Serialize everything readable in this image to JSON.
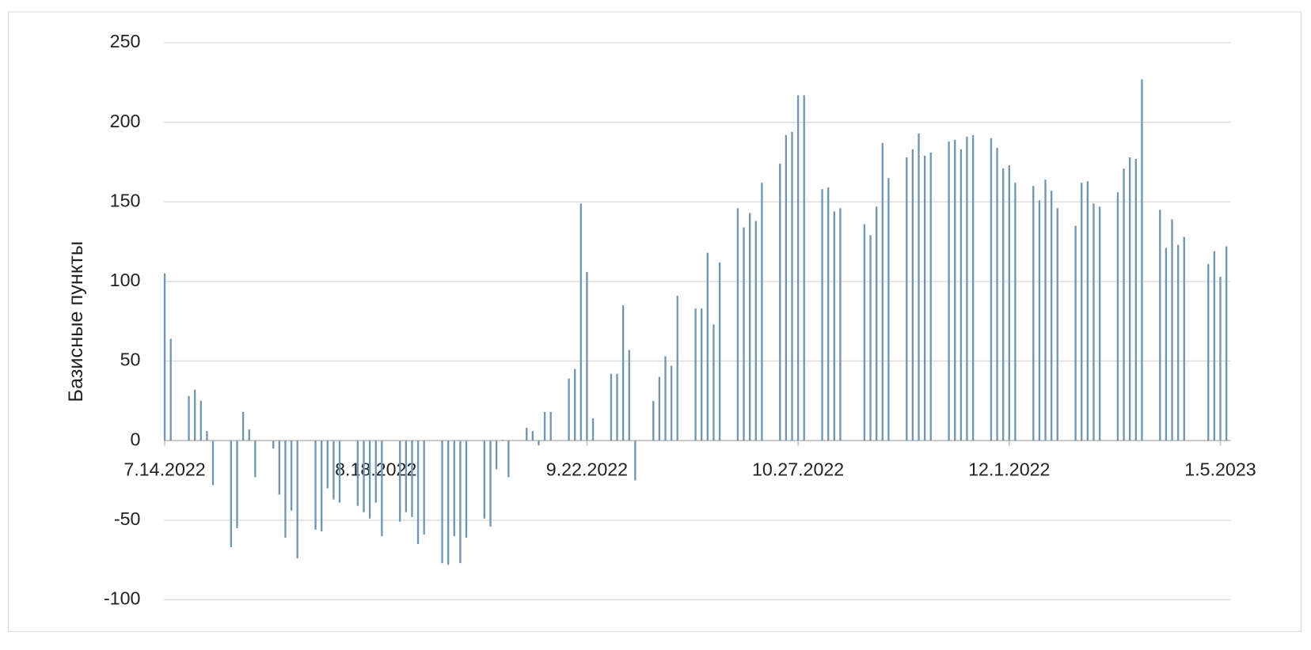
{
  "chart_data": {
    "type": "bar",
    "y_label": "Базисные пункты",
    "color": "#6f96b3",
    "grid": true,
    "ylim": [
      -100,
      250
    ],
    "yticks": [
      -100,
      -50,
      0,
      50,
      100,
      150,
      200,
      250
    ],
    "xlim": [
      "7.14.2022",
      "1.7.2023"
    ],
    "xticks": [
      "7.14.2022",
      "8.18.2022",
      "9.22.2022",
      "10.27.2022",
      "12.1.2022",
      "1.5.2023"
    ],
    "x": [
      "7.14.2022",
      "7.15.2022",
      "7.18.2022",
      "7.19.2022",
      "7.20.2022",
      "7.21.2022",
      "7.22.2022",
      "7.25.2022",
      "7.26.2022",
      "7.27.2022",
      "7.28.2022",
      "7.29.2022",
      "8.1.2022",
      "8.2.2022",
      "8.3.2022",
      "8.4.2022",
      "8.5.2022",
      "8.8.2022",
      "8.9.2022",
      "8.10.2022",
      "8.11.2022",
      "8.12.2022",
      "8.15.2022",
      "8.16.2022",
      "8.17.2022",
      "8.18.2022",
      "8.19.2022",
      "8.22.2022",
      "8.23.2022",
      "8.24.2022",
      "8.25.2022",
      "8.26.2022",
      "8.29.2022",
      "8.30.2022",
      "8.31.2022",
      "9.1.2022",
      "9.2.2022",
      "9.5.2022",
      "9.6.2022",
      "9.7.2022",
      "9.8.2022",
      "9.9.2022",
      "9.12.2022",
      "9.13.2022",
      "9.14.2022",
      "9.15.2022",
      "9.16.2022",
      "9.19.2022",
      "9.20.2022",
      "9.21.2022",
      "9.22.2022",
      "9.23.2022",
      "9.26.2022",
      "9.27.2022",
      "9.28.2022",
      "9.29.2022",
      "9.30.2022",
      "10.3.2022",
      "10.4.2022",
      "10.5.2022",
      "10.6.2022",
      "10.7.2022",
      "10.10.2022",
      "10.11.2022",
      "10.12.2022",
      "10.13.2022",
      "10.14.2022",
      "10.17.2022",
      "10.18.2022",
      "10.19.2022",
      "10.20.2022",
      "10.21.2022",
      "10.24.2022",
      "10.25.2022",
      "10.26.2022",
      "10.27.2022",
      "10.28.2022",
      "10.31.2022",
      "11.1.2022",
      "11.2.2022",
      "11.3.2022",
      "11.7.2022",
      "11.8.2022",
      "11.9.2022",
      "11.10.2022",
      "11.11.2022",
      "11.14.2022",
      "11.15.2022",
      "11.16.2022",
      "11.17.2022",
      "11.18.2022",
      "11.21.2022",
      "11.22.2022",
      "11.23.2022",
      "11.24.2022",
      "11.25.2022",
      "11.28.2022",
      "11.29.2022",
      "11.30.2022",
      "12.1.2022",
      "12.2.2022",
      "12.5.2022",
      "12.6.2022",
      "12.7.2022",
      "12.8.2022",
      "12.9.2022",
      "12.12.2022",
      "12.13.2022",
      "12.14.2022",
      "12.15.2022",
      "12.16.2022",
      "12.19.2022",
      "12.20.2022",
      "12.21.2022",
      "12.22.2022",
      "12.23.2022",
      "12.26.2022",
      "12.27.2022",
      "12.28.2022",
      "12.29.2022",
      "12.30.2022",
      "1.3.2023",
      "1.4.2023",
      "1.5.2023",
      "1.6.2023"
    ],
    "values": [
      105,
      64,
      28,
      32,
      25,
      6,
      -28,
      -67,
      -55,
      18,
      7,
      -23,
      -5,
      -34,
      -61,
      -44,
      -74,
      -56,
      -57,
      -30,
      -37,
      -39,
      -41,
      -45,
      -49,
      -39,
      -60,
      -51,
      -45,
      -48,
      -65,
      -59,
      -77,
      -78,
      -60,
      -77,
      -61,
      -49,
      -54,
      -18,
      0.5,
      -23,
      8,
      6,
      -3,
      18,
      18,
      39,
      45,
      149,
      106,
      14,
      42,
      42,
      85,
      57,
      -25,
      25,
      40,
      53,
      47,
      91,
      83,
      83,
      118,
      73,
      112,
      146,
      134,
      143,
      138,
      162,
      174,
      192,
      194,
      217,
      217,
      158,
      159,
      144,
      146,
      136,
      129,
      147,
      187,
      165,
      178,
      183,
      193,
      179,
      181,
      188,
      189,
      183,
      191,
      192,
      190,
      184,
      171,
      173,
      162,
      160,
      151,
      164,
      157,
      146,
      135,
      162,
      163,
      149,
      147,
      156,
      171,
      178,
      177,
      227,
      145,
      121,
      139,
      123,
      128,
      111,
      119,
      103,
      122
    ]
  }
}
